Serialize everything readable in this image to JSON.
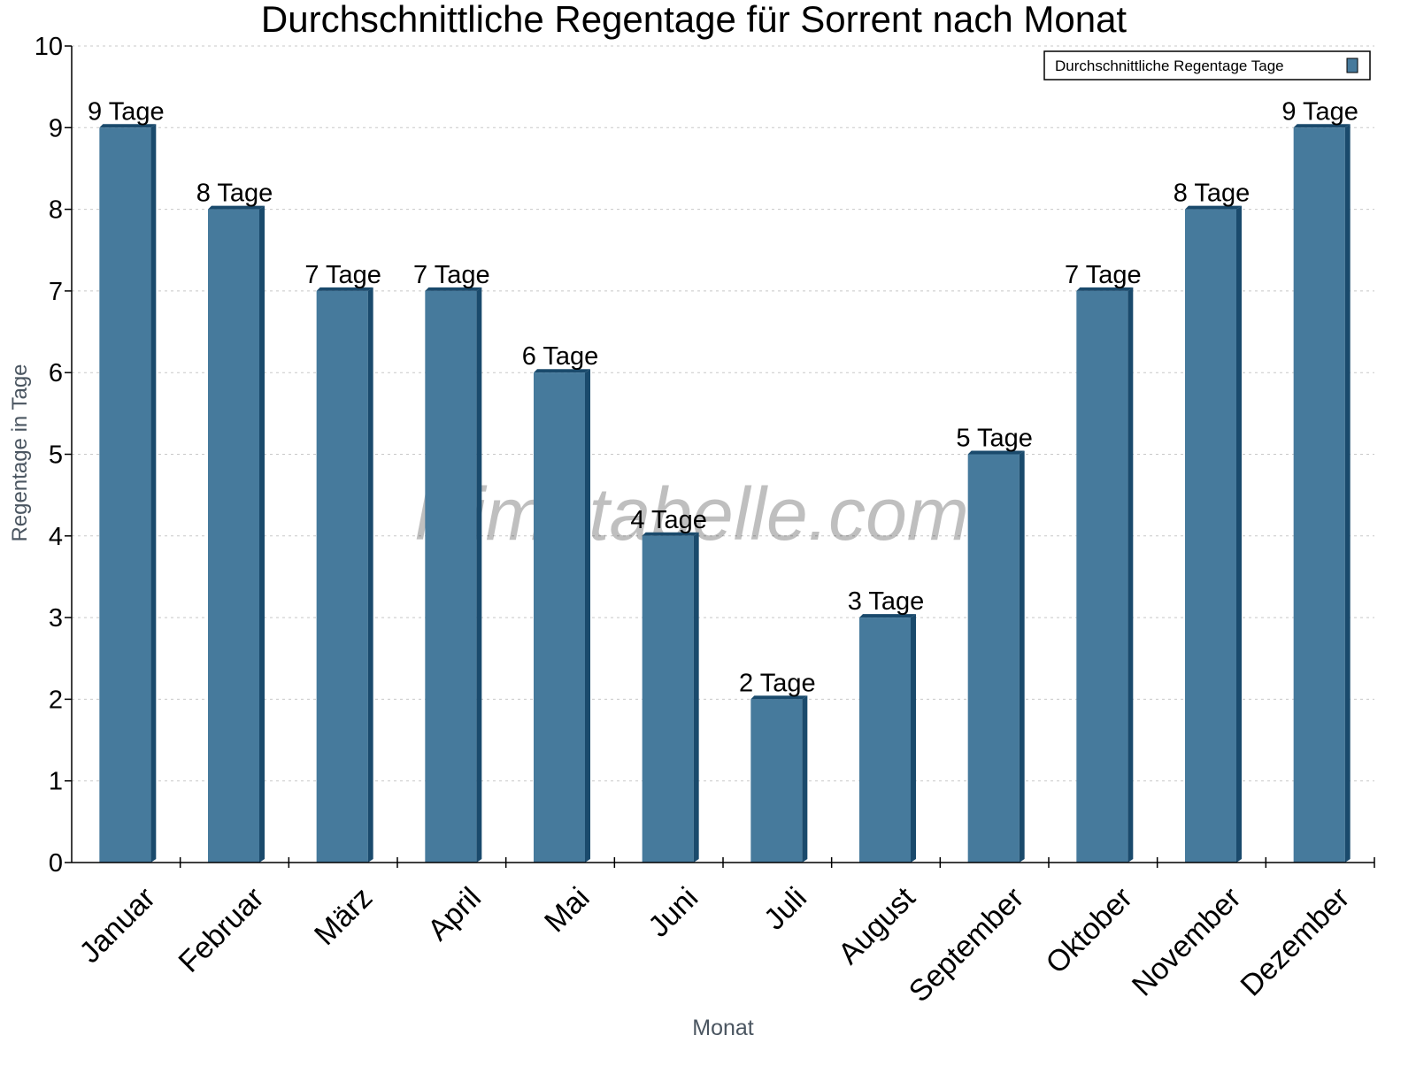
{
  "chart_data": {
    "type": "bar",
    "title": "Durchschnittliche Regentage für Sorrent nach Monat",
    "xlabel": "Monat",
    "ylabel": "Regentage in Tage",
    "ylim": [
      0,
      10
    ],
    "yticks": [
      "0",
      "1",
      "2",
      "3",
      "4",
      "5",
      "6",
      "7",
      "8",
      "9",
      "10"
    ],
    "grid": true,
    "legend_position": "top-right",
    "categories": [
      "Januar",
      "Februar",
      "März",
      "April",
      "Mai",
      "Juni",
      "Juli",
      "August",
      "September",
      "Oktober",
      "November",
      "Dezember"
    ],
    "series": [
      {
        "name": "Durchschnittliche Regentage Tage",
        "values": [
          9,
          8,
          7,
          7,
          6,
          4,
          2,
          3,
          5,
          7,
          8,
          9
        ],
        "labels": [
          "9 Tage",
          "8 Tage",
          "7 Tage",
          "7 Tage",
          "6 Tage",
          "4 Tage",
          "2 Tage",
          "3 Tage",
          "5 Tage",
          "7 Tage",
          "8 Tage",
          "9 Tage"
        ],
        "color": "#467a9c",
        "side_color": "#1a4a6c"
      }
    ],
    "watermark": "klimatabelle.com"
  }
}
